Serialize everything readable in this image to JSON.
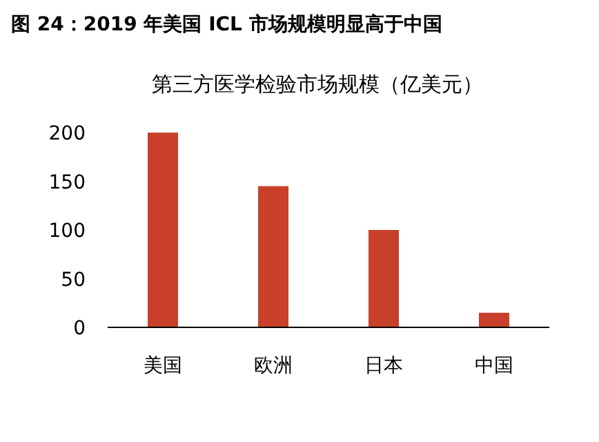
{
  "chart_data": {
    "type": "bar",
    "title": "图 24：2019 年美国 ICL 市场规模明显高于中国",
    "subtitle": "第三方医学检验市场规模（亿美元）",
    "categories": [
      "美国",
      "欧洲",
      "日本",
      "中国"
    ],
    "values": [
      200,
      145,
      100,
      15
    ],
    "color": "#c8402a",
    "ylim": [
      0,
      200
    ],
    "yticks": [
      0,
      50,
      100,
      150,
      200
    ]
  }
}
